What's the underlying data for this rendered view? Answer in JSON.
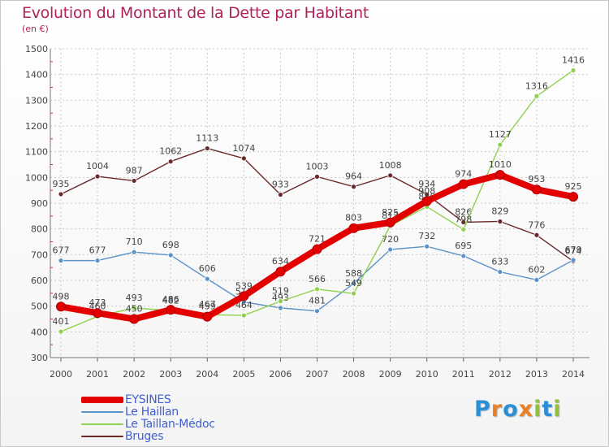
{
  "title": "Evolution du Montant de la Dette par Habitant",
  "subtitle": "(en €)",
  "brand": {
    "letters": [
      "P",
      "r",
      "o",
      "x",
      "i",
      "t",
      "i"
    ],
    "colors": [
      "#2a8fd6",
      "#e8822a",
      "#2a8fd6",
      "#e8822a",
      "#8fc23a",
      "#2a8fd6",
      "#8fc23a"
    ]
  },
  "chart_data": {
    "type": "line",
    "x": [
      "2000",
      "2001",
      "2002",
      "2003",
      "2004",
      "2005",
      "2006",
      "2007",
      "2008",
      "2009",
      "2010",
      "2011",
      "2012",
      "2013",
      "2014"
    ],
    "ylim": [
      300,
      1500
    ],
    "yticks": [
      "300",
      "400",
      "500",
      "600",
      "700",
      "800",
      "900",
      "1000",
      "1100",
      "1200",
      "1300",
      "1400",
      "1500"
    ],
    "grid": true,
    "legend_position": "bottom-left",
    "series": [
      {
        "name": "Bruges",
        "color": "#6b2a2a",
        "values": [
          935,
          1004,
          987,
          1062,
          1113,
          1074,
          933,
          1003,
          964,
          1008,
          934,
          826,
          829,
          776,
          674
        ]
      },
      {
        "name": "Le Haillan",
        "color": "#5b93c8",
        "values": [
          677,
          677,
          710,
          698,
          606,
          516,
          493,
          481,
          588,
          720,
          732,
          695,
          633,
          602,
          679
        ]
      },
      {
        "name": "Le Taillan-Médoc",
        "color": "#8fd14f",
        "values": [
          401,
          460,
          493,
          482,
          467,
          464,
          519,
          566,
          549,
          812,
          886,
          798,
          1127,
          1316,
          1416
        ]
      },
      {
        "name": "EYSINES",
        "color": "#e20000",
        "values": [
          498,
          473,
          450,
          486,
          459,
          539,
          634,
          721,
          803,
          825,
          908,
          974,
          1010,
          953,
          925
        ]
      }
    ]
  },
  "legend": [
    {
      "name": "EYSINES",
      "color": "#e20000",
      "thickness": 8
    },
    {
      "name": "Le Haillan",
      "color": "#5b93c8",
      "thickness": 2
    },
    {
      "name": "Le Taillan-Médoc",
      "color": "#8fd14f",
      "thickness": 2
    },
    {
      "name": "Bruges",
      "color": "#6b2a2a",
      "thickness": 2
    }
  ]
}
